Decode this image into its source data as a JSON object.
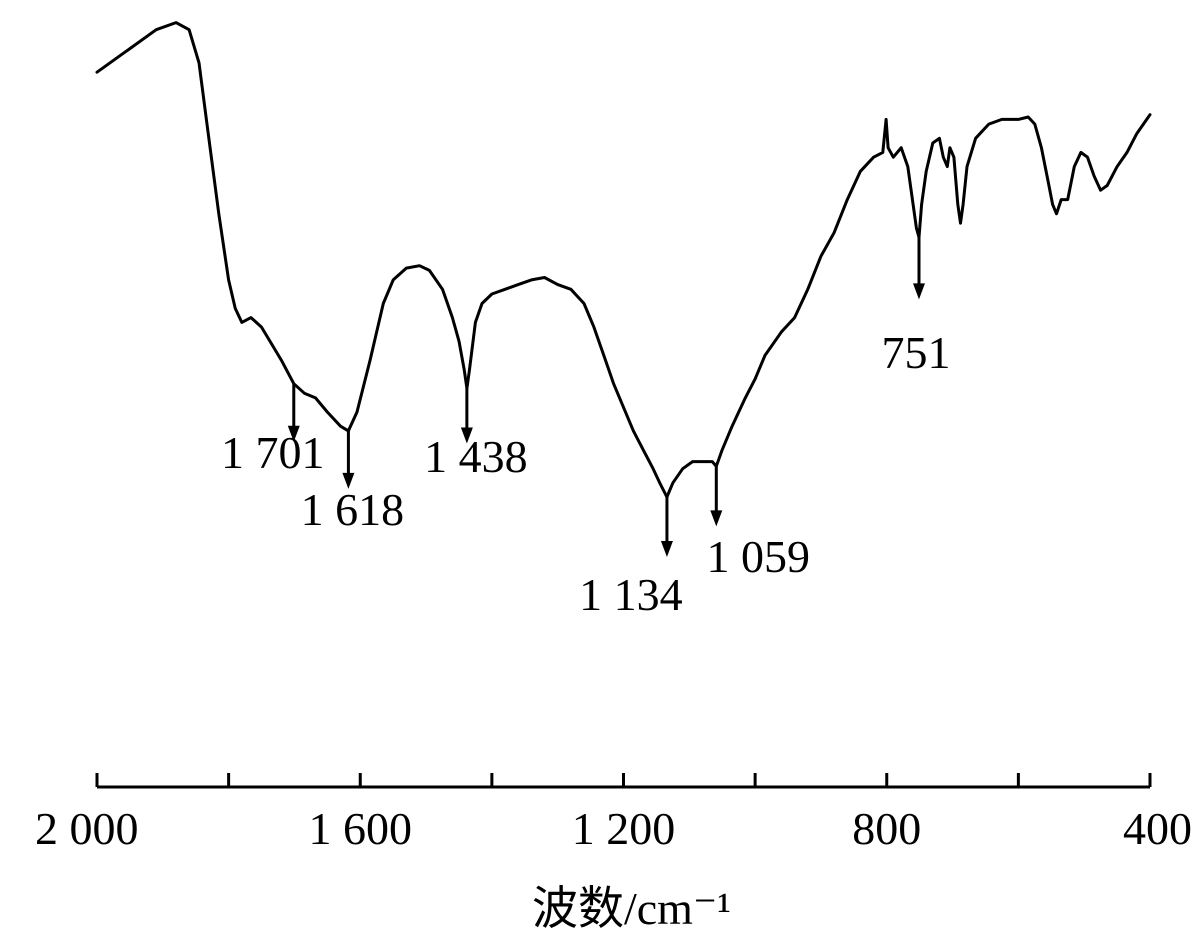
{
  "chart_data": {
    "type": "line",
    "title": "",
    "xlabel": "波数/cm⁻¹",
    "ylabel": "",
    "xlim": [
      2000,
      400
    ],
    "x_reversed": true,
    "x_ticks": [
      2000,
      1800,
      1600,
      1400,
      1200,
      1000,
      800,
      600,
      400
    ],
    "x_tick_labels": [
      "2 000",
      "",
      "1 600",
      "",
      "1 200",
      "",
      "800",
      "",
      "400"
    ],
    "y_axis_shown": false,
    "ylim": [
      0,
      100
    ],
    "grid": false,
    "series": [
      {
        "points": [
          [
            2000,
            90
          ],
          [
            1950,
            95
          ],
          [
            1910,
            99
          ],
          [
            1880,
            100.5
          ],
          [
            1860,
            99
          ],
          [
            1845,
            92
          ],
          [
            1832,
            78
          ],
          [
            1815,
            60
          ],
          [
            1800,
            46
          ],
          [
            1790,
            40
          ],
          [
            1780,
            37
          ],
          [
            1766,
            38
          ],
          [
            1750,
            36
          ],
          [
            1720,
            29
          ],
          [
            1701,
            24
          ],
          [
            1685,
            22
          ],
          [
            1668,
            21
          ],
          [
            1650,
            18
          ],
          [
            1630,
            15
          ],
          [
            1618,
            14
          ],
          [
            1605,
            18
          ],
          [
            1585,
            29
          ],
          [
            1565,
            41
          ],
          [
            1550,
            46
          ],
          [
            1530,
            48.5
          ],
          [
            1510,
            49
          ],
          [
            1495,
            48
          ],
          [
            1475,
            44
          ],
          [
            1460,
            38
          ],
          [
            1450,
            33
          ],
          [
            1442,
            27
          ],
          [
            1438,
            23
          ],
          [
            1434,
            27
          ],
          [
            1425,
            37
          ],
          [
            1415,
            41
          ],
          [
            1400,
            43
          ],
          [
            1380,
            44
          ],
          [
            1360,
            45
          ],
          [
            1340,
            46
          ],
          [
            1320,
            46.5
          ],
          [
            1300,
            45
          ],
          [
            1280,
            44
          ],
          [
            1260,
            41
          ],
          [
            1245,
            36
          ],
          [
            1230,
            30
          ],
          [
            1215,
            24
          ],
          [
            1200,
            19
          ],
          [
            1185,
            14
          ],
          [
            1170,
            10
          ],
          [
            1155,
            6
          ],
          [
            1145,
            3
          ],
          [
            1134,
            0
          ],
          [
            1125,
            3
          ],
          [
            1110,
            6
          ],
          [
            1095,
            7.5
          ],
          [
            1080,
            7.5
          ],
          [
            1065,
            7.5
          ],
          [
            1059,
            6.5
          ],
          [
            1050,
            10
          ],
          [
            1035,
            15
          ],
          [
            1015,
            21
          ],
          [
            1000,
            25
          ],
          [
            985,
            30
          ],
          [
            960,
            35
          ],
          [
            940,
            38
          ],
          [
            920,
            44
          ],
          [
            900,
            51
          ],
          [
            880,
            56
          ],
          [
            860,
            63
          ],
          [
            840,
            69
          ],
          [
            820,
            72
          ],
          [
            806,
            73
          ],
          [
            801,
            80
          ],
          [
            798,
            74
          ],
          [
            790,
            72
          ],
          [
            778,
            74
          ],
          [
            768,
            70
          ],
          [
            760,
            62
          ],
          [
            755,
            57
          ],
          [
            751,
            55
          ],
          [
            747,
            62
          ],
          [
            740,
            69
          ],
          [
            730,
            75
          ],
          [
            720,
            76
          ],
          [
            714,
            72
          ],
          [
            708,
            70
          ],
          [
            704,
            74
          ],
          [
            698,
            72
          ],
          [
            692,
            62
          ],
          [
            688,
            58
          ],
          [
            684,
            62
          ],
          [
            678,
            70
          ],
          [
            665,
            76
          ],
          [
            645,
            79
          ],
          [
            625,
            80
          ],
          [
            600,
            80
          ],
          [
            585,
            80.5
          ],
          [
            575,
            79
          ],
          [
            565,
            74
          ],
          [
            555,
            67
          ],
          [
            548,
            62
          ],
          [
            542,
            60
          ],
          [
            535,
            63
          ],
          [
            525,
            63
          ],
          [
            515,
            70
          ],
          [
            505,
            73
          ],
          [
            495,
            72
          ],
          [
            485,
            68
          ],
          [
            475,
            65
          ],
          [
            465,
            66
          ],
          [
            450,
            70
          ],
          [
            435,
            73
          ],
          [
            420,
            77
          ],
          [
            405,
            80
          ],
          [
            400,
            81
          ]
        ]
      }
    ],
    "annotations": [
      {
        "x": 1701,
        "label": "1 701"
      },
      {
        "x": 1618,
        "label": "1 618"
      },
      {
        "x": 1438,
        "label": "1 438"
      },
      {
        "x": 1134,
        "label": "1 134"
      },
      {
        "x": 1059,
        "label": "1 059"
      },
      {
        "x": 751,
        "label": "751"
      }
    ]
  }
}
